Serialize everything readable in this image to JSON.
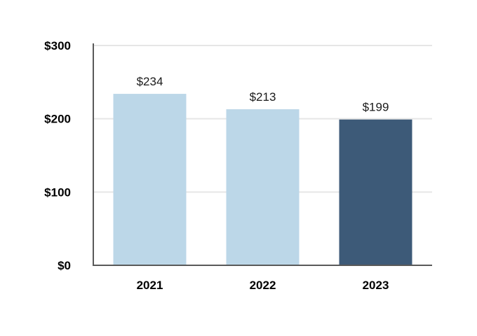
{
  "chart_data": {
    "type": "bar",
    "categories": [
      "2021",
      "2022",
      "2023"
    ],
    "values": [
      234,
      213,
      199
    ],
    "value_labels": [
      "$234",
      "$213",
      "$199"
    ],
    "bar_colors": [
      "#bcd7e8",
      "#bcd7e8",
      "#3d5a78"
    ],
    "title": "",
    "xlabel": "",
    "ylabel": "",
    "ylim": [
      0,
      300
    ],
    "yticks": [
      0,
      100,
      200,
      300
    ],
    "ytick_labels": [
      "$0",
      "$100",
      "$200",
      "$300"
    ],
    "grid": true,
    "legend": "none"
  },
  "colors": {
    "grid": "#e6e6e6",
    "axis": "#595959",
    "highlight_bar": "#3d5a78",
    "bar": "#bcd7e8"
  }
}
